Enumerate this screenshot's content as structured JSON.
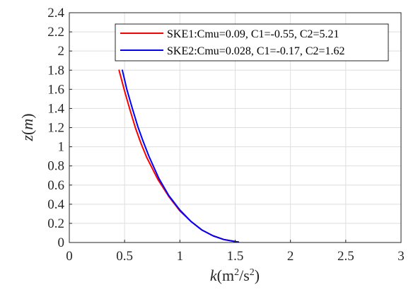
{
  "chart_data": {
    "type": "line",
    "xlabel": "k(m²/s²)",
    "ylabel": "z(m)",
    "xlim": [
      0,
      3
    ],
    "ylim": [
      0,
      2.4
    ],
    "xticks": [
      0,
      0.5,
      1,
      1.5,
      2,
      2.5,
      3
    ],
    "xtick_labels": [
      "0",
      "0.5",
      "1",
      "1.5",
      "2",
      "2.5",
      "3"
    ],
    "yticks": [
      0,
      0.2,
      0.4,
      0.6,
      0.8,
      1,
      1.2,
      1.4,
      1.6,
      1.8,
      2,
      2.2,
      2.4
    ],
    "ytick_labels": [
      "0",
      "0.2",
      "0.4",
      "0.6",
      "0.8",
      "1",
      "1.2",
      "1.4",
      "1.6",
      "1.8",
      "2",
      "2.2",
      "2.4"
    ],
    "grid": true,
    "legend_position": "top-right",
    "series": [
      {
        "name": "SKE1:Cmu=0.09, C1=-0.55, C2=5.21",
        "color": "#ff0000",
        "x": [
          0.45,
          0.5,
          0.55,
          0.6,
          0.65,
          0.7,
          0.8,
          0.9,
          1.0,
          1.1,
          1.2,
          1.3,
          1.4,
          1.5,
          1.52
        ],
        "y": [
          1.8,
          1.58,
          1.38,
          1.19,
          1.03,
          0.89,
          0.66,
          0.48,
          0.33,
          0.22,
          0.13,
          0.07,
          0.03,
          0.01,
          0.005
        ]
      },
      {
        "name": "SKE2:Cmu=0.028, C1=-0.17, C2=1.62",
        "color": "#0000ff",
        "x": [
          0.48,
          0.52,
          0.57,
          0.62,
          0.67,
          0.72,
          0.81,
          0.9,
          1.0,
          1.1,
          1.2,
          1.3,
          1.4,
          1.5,
          1.53
        ],
        "y": [
          1.8,
          1.6,
          1.4,
          1.21,
          1.05,
          0.9,
          0.67,
          0.49,
          0.34,
          0.22,
          0.13,
          0.07,
          0.03,
          0.01,
          0.005
        ]
      }
    ]
  }
}
